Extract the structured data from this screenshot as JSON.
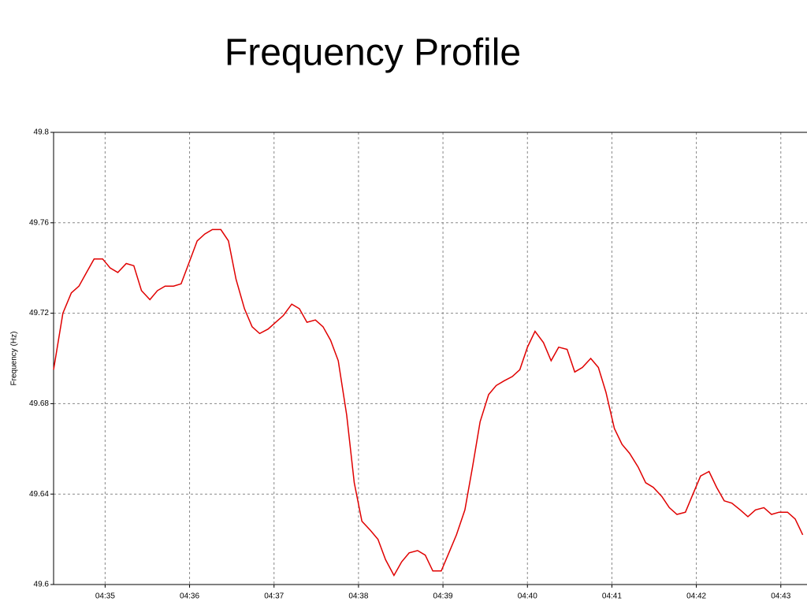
{
  "chart_data": {
    "type": "line",
    "title": "Frequency Profile",
    "y_label": "Frequency (Hz)",
    "x": [
      274.39,
      274.5,
      274.6,
      274.69,
      274.78,
      274.87,
      274.97,
      275.06,
      275.15,
      275.25,
      275.34,
      275.43,
      275.53,
      275.62,
      275.71,
      275.81,
      275.9,
      275.99,
      276.09,
      276.18,
      276.27,
      276.37,
      276.46,
      276.55,
      276.65,
      276.74,
      276.83,
      276.93,
      277.02,
      277.11,
      277.21,
      277.3,
      277.39,
      277.49,
      277.58,
      277.67,
      277.76,
      277.86,
      277.95,
      278.04,
      278.14,
      278.23,
      278.32,
      278.42,
      278.51,
      278.6,
      278.7,
      278.79,
      278.88,
      278.98,
      279.07,
      279.16,
      279.26,
      279.35,
      279.44,
      279.54,
      279.63,
      279.72,
      279.82,
      279.91,
      280.0,
      280.09,
      280.19,
      280.28,
      280.37,
      280.47,
      280.56,
      280.65,
      280.75,
      280.84,
      280.93,
      281.03,
      281.12,
      281.21,
      281.31,
      281.4,
      281.49,
      281.59,
      281.68,
      281.77,
      281.87,
      281.96,
      282.05,
      282.15,
      282.24,
      282.33,
      282.42,
      282.52,
      282.61,
      282.7,
      282.8,
      282.89,
      282.98,
      283.08,
      283.17,
      283.26
    ],
    "series": [
      {
        "color": "#e00000",
        "values": [
          49.695,
          49.72,
          49.729,
          49.732,
          49.738,
          49.744,
          49.744,
          49.74,
          49.738,
          49.742,
          49.741,
          49.73,
          49.726,
          49.73,
          49.732,
          49.732,
          49.733,
          49.742,
          49.752,
          49.755,
          49.757,
          49.757,
          49.752,
          49.735,
          49.722,
          49.714,
          49.711,
          49.713,
          49.716,
          49.719,
          49.724,
          49.722,
          49.716,
          49.717,
          49.714,
          49.708,
          49.699,
          49.675,
          49.645,
          49.628,
          49.624,
          49.62,
          49.611,
          49.604,
          49.61,
          49.614,
          49.615,
          49.613,
          49.606,
          49.606,
          49.614,
          49.622,
          49.633,
          49.652,
          49.672,
          49.684,
          49.688,
          49.69,
          49.692,
          49.695,
          49.705,
          49.712,
          49.707,
          49.699,
          49.705,
          49.704,
          49.694,
          49.696,
          49.7,
          49.696,
          49.685,
          49.669,
          49.662,
          49.658,
          49.652,
          49.645,
          49.643,
          49.639,
          49.634,
          49.631,
          49.632,
          49.64,
          49.648,
          49.65,
          49.643,
          49.637,
          49.636,
          49.633,
          49.63,
          49.633,
          49.634,
          49.631,
          49.632,
          49.632,
          49.629,
          49.622
        ]
      }
    ],
    "xlim": [
      274.39,
      283.31
    ],
    "xticks": [
      {
        "value": 275,
        "label": "04:35"
      },
      {
        "value": 276,
        "label": "04:36"
      },
      {
        "value": 277,
        "label": "04:37"
      },
      {
        "value": 278,
        "label": "04:38"
      },
      {
        "value": 279,
        "label": "04:39"
      },
      {
        "value": 280,
        "label": "04:40"
      },
      {
        "value": 281,
        "label": "04:41"
      },
      {
        "value": 282,
        "label": "04:42"
      },
      {
        "value": 283,
        "label": "04:43"
      }
    ],
    "ylim": [
      49.6,
      49.8
    ],
    "yticks": [
      49.6,
      49.64,
      49.68,
      49.72,
      49.76,
      49.8
    ],
    "grid": true
  }
}
